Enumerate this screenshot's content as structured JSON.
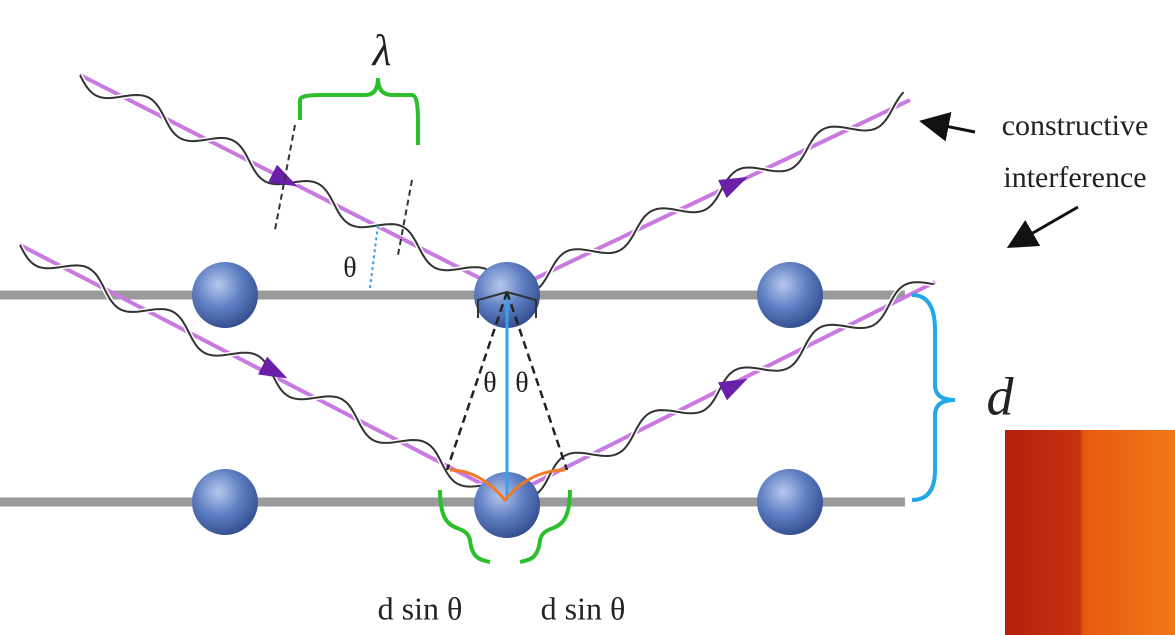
{
  "labels": {
    "wavelength": "λ",
    "annotation_line1": "constructive",
    "annotation_line2": "interference",
    "theta_top": "θ",
    "theta_left": "θ",
    "theta_right": "θ",
    "spacing": "d",
    "path_left": "d sin θ",
    "path_right": "d sin θ"
  }
}
